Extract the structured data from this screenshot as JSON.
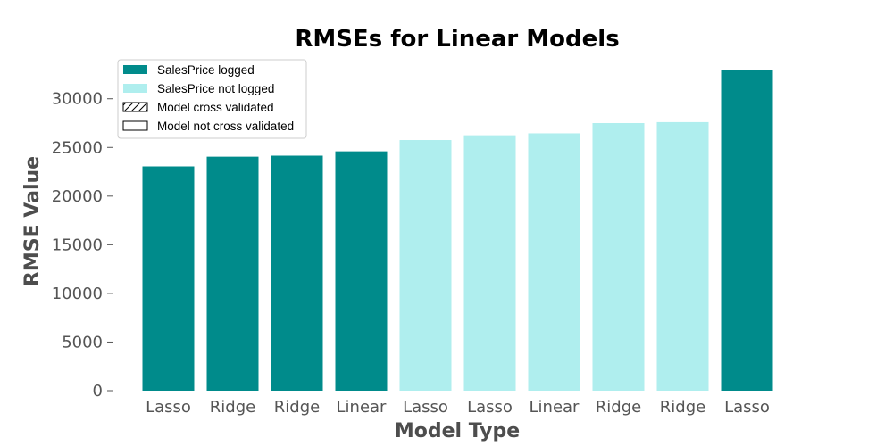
{
  "chart_data": {
    "type": "bar",
    "title": "RMSEs for Linear Models",
    "xlabel": "Model Type",
    "ylabel": "RMSE Value",
    "ylim": [
      0,
      33000
    ],
    "yticks": [
      0,
      5000,
      10000,
      15000,
      20000,
      25000,
      30000
    ],
    "grid": false,
    "legend_position": "top-left",
    "categories": [
      "Lasso",
      "Ridge",
      "Ridge",
      "Linear",
      "Lasso",
      "Lasso",
      "Linear",
      "Ridge",
      "Ridge",
      "Lasso"
    ],
    "values": [
      23050,
      24050,
      24150,
      24600,
      25750,
      26250,
      26450,
      27500,
      27600,
      33000
    ],
    "logged": [
      true,
      true,
      true,
      true,
      false,
      false,
      false,
      false,
      false,
      true
    ],
    "cross_validated": [
      true,
      false,
      true,
      false,
      true,
      false,
      false,
      true,
      false,
      false
    ],
    "colors": {
      "logged": "#008b8b",
      "not_logged": "#afeeee",
      "hatch": "#000000"
    },
    "legend": [
      {
        "label": "SalesPrice logged",
        "kind": "logged"
      },
      {
        "label": "SalesPrice not logged",
        "kind": "not_logged"
      },
      {
        "label": "Model cross validated",
        "kind": "hatch"
      },
      {
        "label": "Model not cross validated",
        "kind": "plain"
      }
    ]
  }
}
